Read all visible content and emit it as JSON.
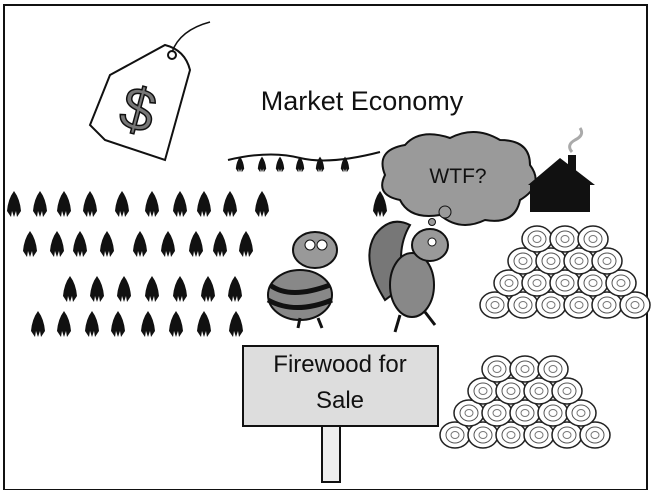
{
  "title": "Market Economy",
  "price_tag": "$",
  "thought_bubble": "WTF?",
  "sign": {
    "lines": [
      "Firewood for",
      "Sale"
    ]
  }
}
